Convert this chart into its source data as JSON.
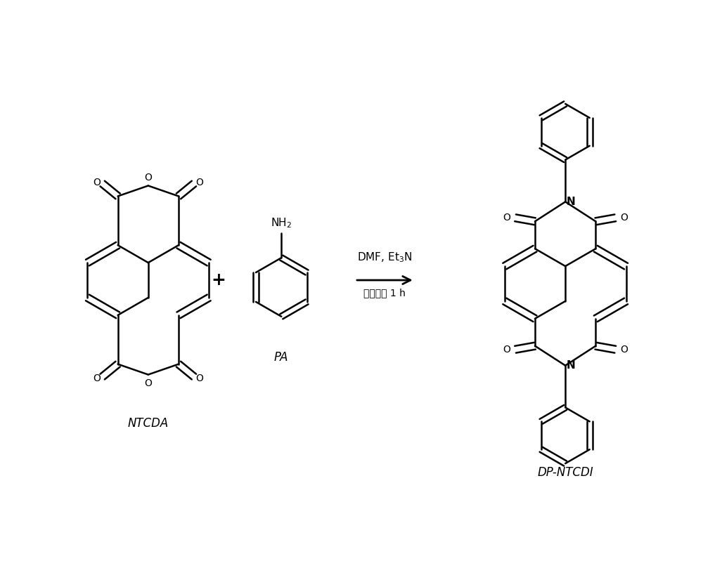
{
  "background_color": "#ffffff",
  "line_color": "#000000",
  "line_width": 1.8,
  "fig_width": 10.0,
  "fig_height": 8.19,
  "label_NTCDA": "NTCDA",
  "label_PA": "PA",
  "label_product": "DP-NTCDI",
  "label_plus": "+",
  "arrow_text_top": "DMF, Et$_3$N",
  "arrow_text_bottom": "回流反应 1 h",
  "NH2_label": "NH$_2$"
}
